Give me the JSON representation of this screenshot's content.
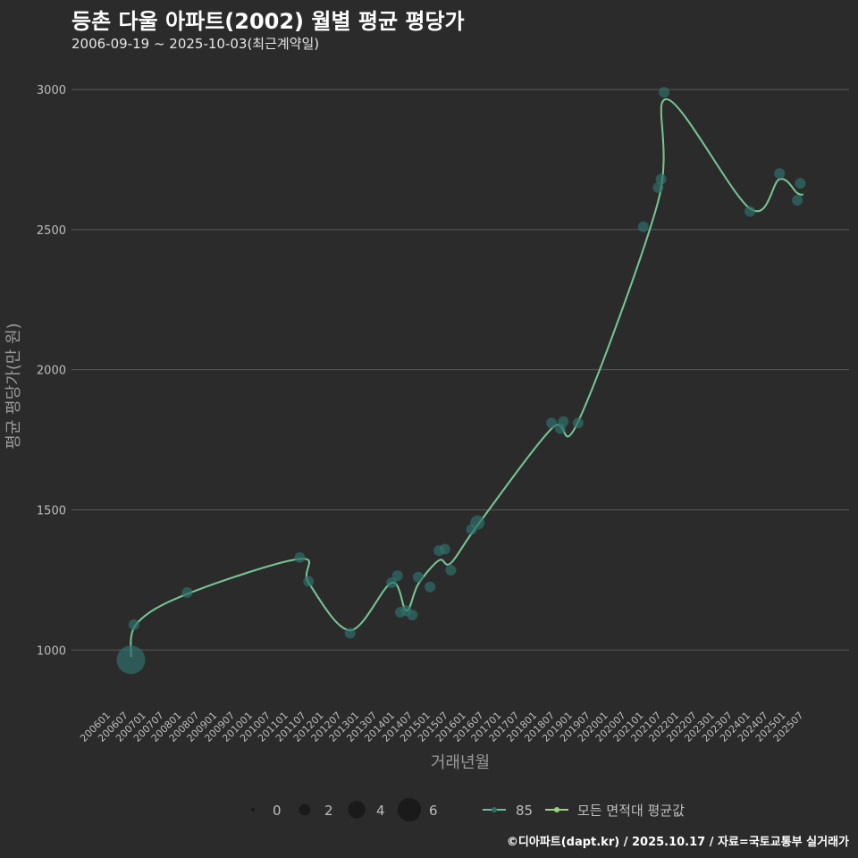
{
  "title": "등촌 다울 아파트(2002) 월별 평균 평당가",
  "subtitle": "2006-09-19 ~ 2025-10-03(최근계약일)",
  "caption": "©디아파트(dapt.kr) / 2025.10.17 / 자료=국토교통부 실거래가",
  "colors": {
    "background": "#2b2b2b",
    "grid": "#5a5a5a",
    "series_point": "#2f6f6a",
    "series_line": "#5fc2a6",
    "avg_line": "#9ad47f",
    "text": "#bdbdbd"
  },
  "chart_data": {
    "type": "scatter",
    "xlabel": "거래년월",
    "ylabel": "평균 평당가(만 원)",
    "ylim": [
      800,
      3080
    ],
    "y_ticks": [
      1000,
      1500,
      2000,
      2500,
      3000
    ],
    "x_range": [
      "200601",
      "202512"
    ],
    "x_ticks": [
      "200601",
      "200607",
      "200701",
      "200707",
      "200801",
      "200807",
      "200901",
      "200907",
      "201001",
      "201007",
      "201101",
      "201107",
      "201201",
      "201207",
      "201301",
      "201307",
      "201401",
      "201407",
      "201501",
      "201507",
      "201601",
      "201607",
      "201701",
      "201707",
      "201801",
      "201807",
      "201901",
      "201907",
      "202001",
      "202007",
      "202101",
      "202107",
      "202201",
      "202207",
      "202301",
      "202307",
      "202401",
      "202407",
      "202501",
      "202507"
    ],
    "series": [
      {
        "name": "85",
        "points": [
          {
            "x": "200609",
            "y": 965,
            "count": 6
          },
          {
            "x": "200610",
            "y": 1090,
            "count": 1
          },
          {
            "x": "200804",
            "y": 1205,
            "count": 1
          },
          {
            "x": "201106",
            "y": 1330,
            "count": 1
          },
          {
            "x": "201109",
            "y": 1245,
            "count": 1
          },
          {
            "x": "201211",
            "y": 1060,
            "count": 1
          },
          {
            "x": "201401",
            "y": 1240,
            "count": 1
          },
          {
            "x": "201403",
            "y": 1265,
            "count": 1
          },
          {
            "x": "201404",
            "y": 1135,
            "count": 1
          },
          {
            "x": "201406",
            "y": 1140,
            "count": 1
          },
          {
            "x": "201408",
            "y": 1125,
            "count": 1
          },
          {
            "x": "201410",
            "y": 1260,
            "count": 1
          },
          {
            "x": "201502",
            "y": 1225,
            "count": 1
          },
          {
            "x": "201505",
            "y": 1355,
            "count": 1
          },
          {
            "x": "201507",
            "y": 1360,
            "count": 1
          },
          {
            "x": "201509",
            "y": 1285,
            "count": 1
          },
          {
            "x": "201604",
            "y": 1430,
            "count": 1
          },
          {
            "x": "201606",
            "y": 1455,
            "count": 2
          },
          {
            "x": "201807",
            "y": 1810,
            "count": 1
          },
          {
            "x": "201810",
            "y": 1790,
            "count": 1
          },
          {
            "x": "201811",
            "y": 1815,
            "count": 1
          },
          {
            "x": "201904",
            "y": 1810,
            "count": 1
          },
          {
            "x": "202102",
            "y": 2510,
            "count": 1
          },
          {
            "x": "202107",
            "y": 2650,
            "count": 1
          },
          {
            "x": "202108",
            "y": 2680,
            "count": 1
          },
          {
            "x": "202109",
            "y": 2990,
            "count": 1
          },
          {
            "x": "202402",
            "y": 2565,
            "count": 1
          },
          {
            "x": "202412",
            "y": 2700,
            "count": 1
          },
          {
            "x": "202506",
            "y": 2605,
            "count": 1
          },
          {
            "x": "202507",
            "y": 2665,
            "count": 1
          }
        ]
      }
    ],
    "average_line": {
      "name": "모든 면적대 평균값",
      "points": [
        {
          "x": "200609",
          "y": 975
        },
        {
          "x": "200611",
          "y": 1095
        },
        {
          "x": "200804",
          "y": 1200
        },
        {
          "x": "201106",
          "y": 1325
        },
        {
          "x": "201109",
          "y": 1240
        },
        {
          "x": "201211",
          "y": 1070
        },
        {
          "x": "201401",
          "y": 1240
        },
        {
          "x": "201406",
          "y": 1140
        },
        {
          "x": "201410",
          "y": 1235
        },
        {
          "x": "201505",
          "y": 1320
        },
        {
          "x": "201509",
          "y": 1310
        },
        {
          "x": "201606",
          "y": 1445
        },
        {
          "x": "201807",
          "y": 1790
        },
        {
          "x": "201904",
          "y": 1815
        },
        {
          "x": "202107",
          "y": 2600
        },
        {
          "x": "202110",
          "y": 2965
        },
        {
          "x": "202402",
          "y": 2575
        },
        {
          "x": "202412",
          "y": 2680
        },
        {
          "x": "202506",
          "y": 2630
        },
        {
          "x": "202508",
          "y": 2625
        }
      ]
    },
    "legend": {
      "size_title": "",
      "size_values": [
        0,
        2,
        4,
        6
      ],
      "series_label": "85",
      "avg_label": "모든 면적대 평균값",
      "placement": "bottom"
    }
  }
}
